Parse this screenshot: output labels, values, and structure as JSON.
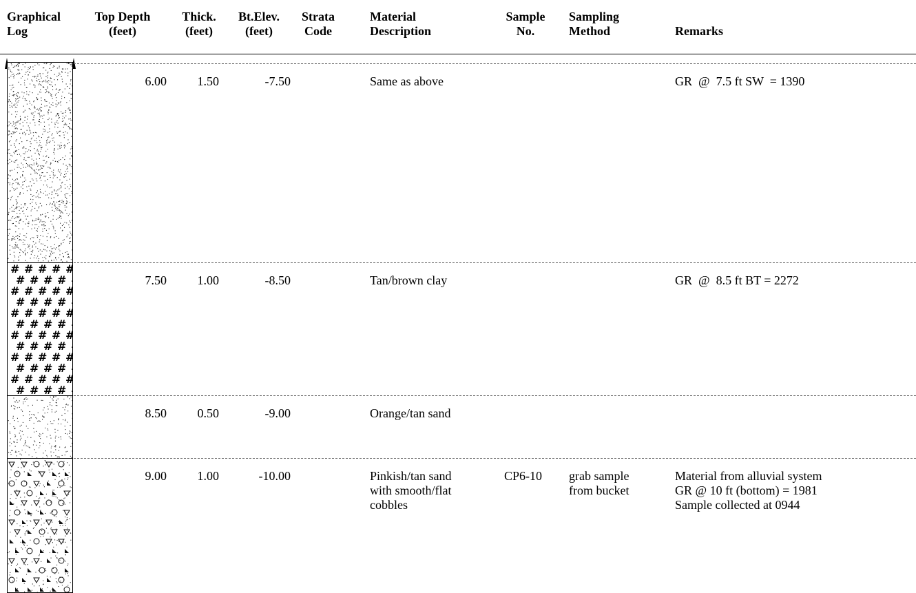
{
  "headers": {
    "graphical_log": "Graphical\nLog",
    "top_depth": "Top Depth\n(feet)",
    "thick": "Thick.\n(feet)",
    "bt_elev": "Bt.Elev.\n(feet)",
    "strata_code": "Strata\nCode",
    "material_description": "Material\nDescription",
    "sample_no": "Sample\nNo.",
    "sampling_method": "Sampling\nMethod",
    "remarks": "Remarks"
  },
  "rows": [
    {
      "pattern": "fine-sand",
      "top_depth": "6.00",
      "thick": "1.50",
      "bt_elev": "-7.50",
      "strata_code": "",
      "description": "Same as above",
      "sample_no": "",
      "sampling_method": "",
      "remarks": "GR  @  7.5 ft SW  = 1390"
    },
    {
      "pattern": "clay-hash",
      "top_depth": "7.50",
      "thick": "1.00",
      "bt_elev": "-8.50",
      "strata_code": "",
      "description": "Tan/brown clay",
      "sample_no": "",
      "sampling_method": "",
      "remarks": "GR  @  8.5 ft BT = 2272"
    },
    {
      "pattern": "sand",
      "top_depth": "8.50",
      "thick": "0.50",
      "bt_elev": "-9.00",
      "strata_code": "",
      "description": "Orange/tan sand",
      "sample_no": "",
      "sampling_method": "",
      "remarks": ""
    },
    {
      "pattern": "sand-cobbles",
      "top_depth": "9.00",
      "thick": "1.00",
      "bt_elev": "-10.00",
      "strata_code": "",
      "description": "Pinkish/tan sand\nwith smooth/flat\ncobbles",
      "sample_no": "CP6-10",
      "sampling_method": "grab sample\nfrom bucket",
      "remarks": "Material from alluvial system\nGR @ 10 ft (bottom) = 1981\nSample collected at 0944"
    }
  ]
}
